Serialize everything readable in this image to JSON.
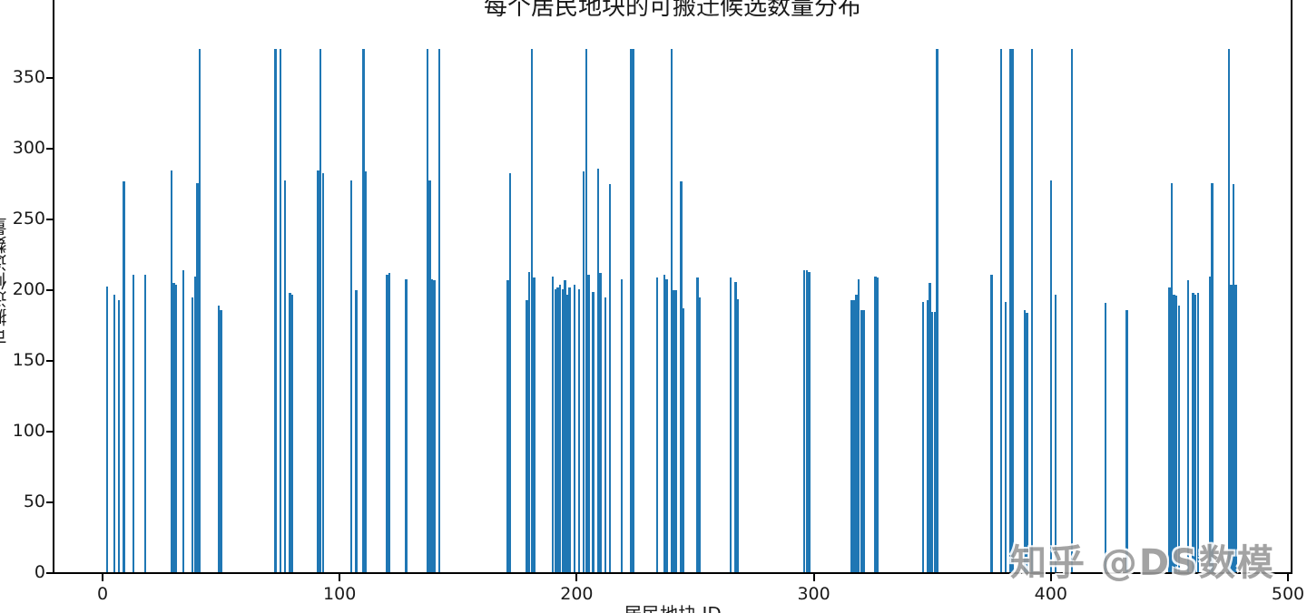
{
  "figure": {
    "title": "每个居民地块的可搬迁候选数量分布",
    "watermark": "知乎 @DS数模"
  },
  "chart_data": {
    "type": "bar",
    "title": "每个居民地块的可搬迁候选数量分布",
    "xlabel": "居民地块 ID",
    "ylabel": "可搬迁候选数量",
    "xlim": [
      -21,
      502
    ],
    "ylim": [
      0,
      389
    ],
    "x_ticks": [
      0,
      100,
      200,
      300,
      400,
      500
    ],
    "y_ticks": [
      0,
      50,
      100,
      150,
      200,
      250,
      300,
      350
    ],
    "grid": false,
    "legend": "none",
    "bar_color": "#1f77b4",
    "max_value": 371,
    "points_format": [
      "block_id",
      "candidate_count"
    ],
    "points": [
      [
        2,
        203
      ],
      [
        5,
        197
      ],
      [
        7,
        193
      ],
      [
        9,
        277
      ],
      [
        13,
        211
      ],
      [
        18,
        211
      ],
      [
        29,
        285
      ],
      [
        30,
        205
      ],
      [
        31,
        204
      ],
      [
        34,
        214
      ],
      [
        38,
        195
      ],
      [
        39,
        210
      ],
      [
        40,
        276
      ],
      [
        41,
        371
      ],
      [
        49,
        189
      ],
      [
        50,
        186
      ],
      [
        73,
        371
      ],
      [
        75,
        371
      ],
      [
        77,
        278
      ],
      [
        79,
        198
      ],
      [
        80,
        197
      ],
      [
        91,
        285
      ],
      [
        92,
        371
      ],
      [
        93,
        283
      ],
      [
        105,
        278
      ],
      [
        107,
        200
      ],
      [
        110,
        371
      ],
      [
        111,
        284
      ],
      [
        120,
        211
      ],
      [
        121,
        212
      ],
      [
        128,
        208
      ],
      [
        137,
        371
      ],
      [
        138,
        278
      ],
      [
        139,
        208
      ],
      [
        140,
        207
      ],
      [
        142,
        371
      ],
      [
        171,
        207
      ],
      [
        172,
        283
      ],
      [
        179,
        193
      ],
      [
        180,
        213
      ],
      [
        181,
        371
      ],
      [
        182,
        209
      ],
      [
        190,
        210
      ],
      [
        191,
        201
      ],
      [
        192,
        202
      ],
      [
        193,
        204
      ],
      [
        194,
        201
      ],
      [
        195,
        207
      ],
      [
        196,
        197
      ],
      [
        197,
        202
      ],
      [
        199,
        204
      ],
      [
        201,
        201
      ],
      [
        203,
        284
      ],
      [
        204,
        371
      ],
      [
        205,
        211
      ],
      [
        207,
        199
      ],
      [
        209,
        286
      ],
      [
        210,
        212
      ],
      [
        212,
        195
      ],
      [
        214,
        275
      ],
      [
        219,
        208
      ],
      [
        223,
        371
      ],
      [
        224,
        371
      ],
      [
        234,
        209
      ],
      [
        237,
        211
      ],
      [
        238,
        208
      ],
      [
        240,
        371
      ],
      [
        241,
        200
      ],
      [
        242,
        200
      ],
      [
        244,
        277
      ],
      [
        245,
        187
      ],
      [
        251,
        209
      ],
      [
        252,
        195
      ],
      [
        265,
        209
      ],
      [
        267,
        206
      ],
      [
        268,
        194
      ],
      [
        296,
        214
      ],
      [
        297,
        214
      ],
      [
        298,
        213
      ],
      [
        316,
        193
      ],
      [
        317,
        193
      ],
      [
        318,
        197
      ],
      [
        319,
        208
      ],
      [
        320,
        186
      ],
      [
        321,
        186
      ],
      [
        326,
        210
      ],
      [
        327,
        209
      ],
      [
        346,
        192
      ],
      [
        348,
        193
      ],
      [
        349,
        205
      ],
      [
        350,
        185
      ],
      [
        351,
        185
      ],
      [
        352,
        371
      ],
      [
        375,
        211
      ],
      [
        379,
        371
      ],
      [
        381,
        192
      ],
      [
        383,
        371
      ],
      [
        384,
        371
      ],
      [
        389,
        186
      ],
      [
        390,
        184
      ],
      [
        392,
        371
      ],
      [
        400,
        278
      ],
      [
        402,
        197
      ],
      [
        409,
        371
      ],
      [
        423,
        191
      ],
      [
        432,
        186
      ],
      [
        450,
        202
      ],
      [
        451,
        276
      ],
      [
        452,
        197
      ],
      [
        453,
        196
      ],
      [
        454,
        189
      ],
      [
        458,
        207
      ],
      [
        460,
        198
      ],
      [
        461,
        197
      ],
      [
        462,
        198
      ],
      [
        467,
        210
      ],
      [
        468,
        276
      ],
      [
        475,
        371
      ],
      [
        476,
        204
      ],
      [
        477,
        275
      ],
      [
        478,
        204
      ]
    ]
  }
}
